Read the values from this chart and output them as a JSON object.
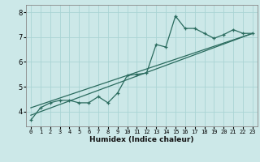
{
  "title": "",
  "xlabel": "Humidex (Indice chaleur)",
  "ylabel": "",
  "bg_color": "#cce8e8",
  "grid_color": "#aad4d4",
  "line_color": "#2a6b5e",
  "xlim": [
    -0.5,
    23.5
  ],
  "ylim": [
    3.4,
    8.3
  ],
  "xticks": [
    0,
    1,
    2,
    3,
    4,
    5,
    6,
    7,
    8,
    9,
    10,
    11,
    12,
    13,
    14,
    15,
    16,
    17,
    18,
    19,
    20,
    21,
    22,
    23
  ],
  "yticks": [
    4,
    5,
    6,
    7,
    8
  ],
  "curve_x": [
    0,
    1,
    2,
    3,
    4,
    5,
    6,
    7,
    8,
    9,
    10,
    11,
    12,
    13,
    14,
    15,
    16,
    17,
    18,
    19,
    20,
    21,
    22,
    23
  ],
  "curve_y": [
    3.65,
    4.15,
    4.35,
    4.45,
    4.45,
    4.35,
    4.35,
    4.6,
    4.35,
    4.75,
    5.45,
    5.5,
    5.55,
    6.7,
    6.6,
    7.85,
    7.35,
    7.35,
    7.15,
    6.95,
    7.1,
    7.3,
    7.15,
    7.15
  ],
  "trend1_x": [
    0,
    23
  ],
  "trend1_y": [
    3.85,
    7.15
  ],
  "trend2_x": [
    0,
    23
  ],
  "trend2_y": [
    4.15,
    7.15
  ]
}
